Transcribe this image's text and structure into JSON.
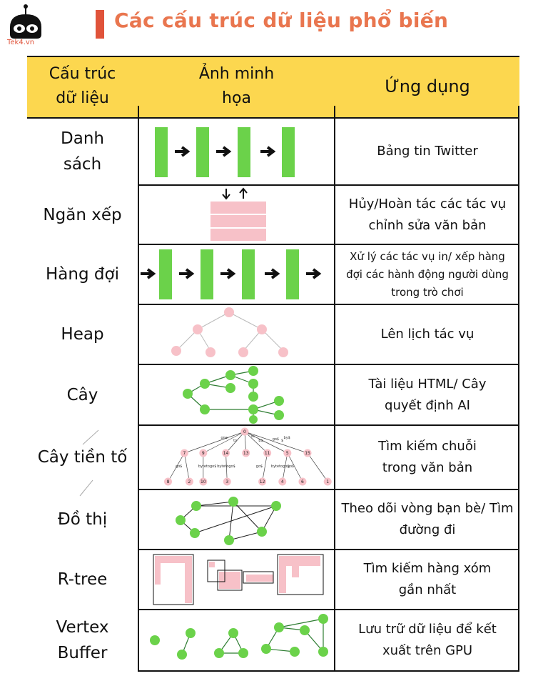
{
  "logo": {
    "text": "Tek4.vn"
  },
  "title": "Các cấu trúc dữ liệu phổ biến",
  "headers": {
    "col1": "Cấu trúc dữ liệu",
    "col2": "Ảnh minh họa",
    "col3": "Ứng dụng"
  },
  "rows": [
    {
      "name": "Danh sách",
      "use": "Bảng tin Twitter"
    },
    {
      "name": "Ngăn xếp",
      "use": "Hủy/Hoàn tác các tác vụ chỉnh sửa văn bản"
    },
    {
      "name": "Hàng đợi",
      "use": "Xử lý các tác vụ in/ xếp hàng đợi các hành động người dùng trong trò chơi"
    },
    {
      "name": "Heap",
      "use": "Lên lịch tác vụ"
    },
    {
      "name": "Cây",
      "use": "Tài liệu HTML/ Cây quyết định AI"
    },
    {
      "name": "Cây tiền tố",
      "use": "Tìm kiếm chuỗi trong văn bản"
    },
    {
      "name": "Đồ thị",
      "use": "Theo dõi vòng bạn bè/ Tìm đường đi"
    },
    {
      "name": "R-tree",
      "use": "Tìm kiếm hàng xóm gần nhất"
    },
    {
      "name": "Vertex Buffer",
      "use": "Lưu trữ dữ liệu để kết xuất trên GPU"
    }
  ],
  "trie": {
    "root": "0",
    "level1": [
      "7",
      "9",
      "14",
      "13",
      "11",
      "5",
      "15"
    ],
    "level2": [
      "8",
      "2",
      "10",
      "3",
      "12",
      "4",
      "6",
      "1"
    ],
    "edge_labels": [
      "one",
      "to",
      "b$",
      "ss",
      "go$",
      "by$",
      "$",
      "go$",
      "bytetogo$",
      "bytetogo$",
      "go$",
      "bytetogo$",
      "go$"
    ]
  },
  "colors": {
    "title": "#e9764f",
    "accent_bar": "#e0533a",
    "header_bg": "#fcd74f",
    "green": "#6bd24a",
    "pink": "#f7c1c8",
    "lines": "#111111"
  }
}
